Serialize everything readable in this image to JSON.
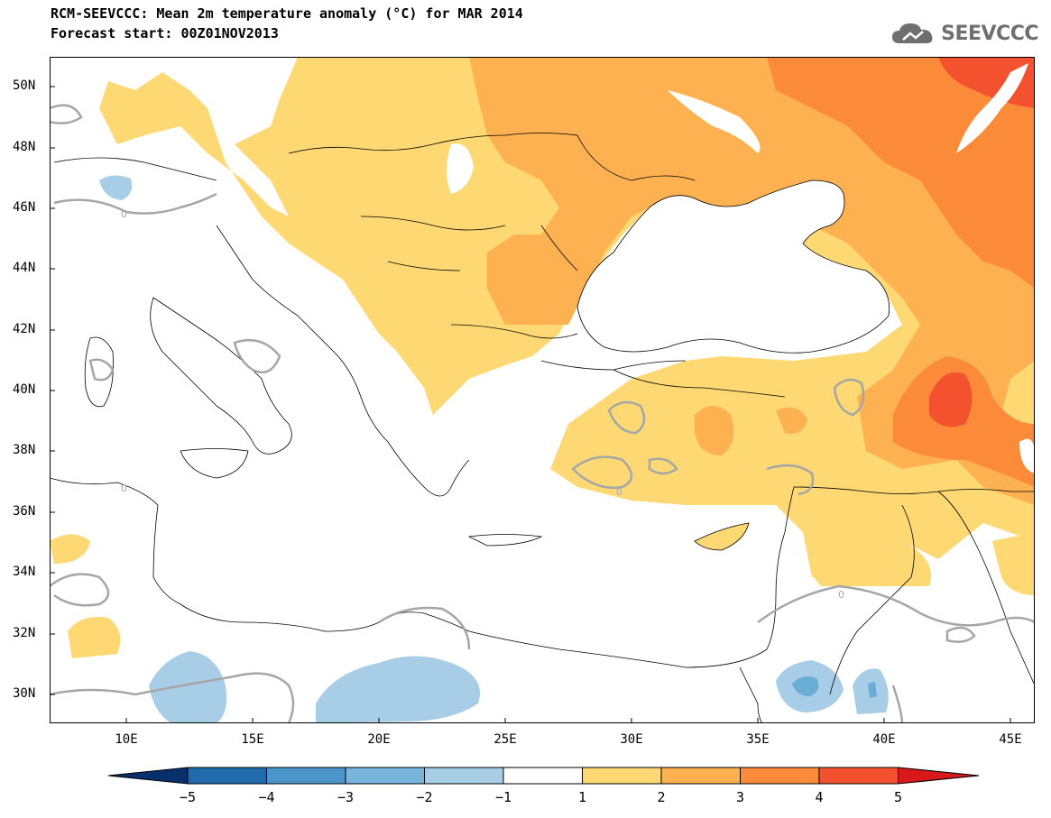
{
  "title": {
    "line1": "RCM-SEEVCCC: Mean 2m temperature anomaly (°C) for MAR 2014",
    "line2": "Forecast start: 00Z01NOV2013"
  },
  "logo": {
    "text": "SEEVCCC",
    "icon": "cloud-icon"
  },
  "map": {
    "projection": "lat-lon",
    "lon_range": [
      7,
      46
    ],
    "lat_range": [
      29,
      51
    ],
    "lat_ticks": [
      "50N",
      "48N",
      "46N",
      "44N",
      "42N",
      "40N",
      "38N",
      "36N",
      "34N",
      "32N",
      "30N"
    ],
    "lon_ticks": [
      "10E",
      "15E",
      "20E",
      "25E",
      "30E",
      "35E",
      "40E",
      "45E"
    ],
    "contour_label": "0",
    "colors": {
      "land_line": "#000000",
      "zero_contour": "#a6a6a6",
      "minus2": "#a8cde6",
      "minus3": "#6aaed6",
      "plus1": "#fdd873",
      "plus2": "#fdb151",
      "plus3": "#fb8b39",
      "plus4": "#f4522e"
    }
  },
  "colorbar": {
    "labels": [
      "−5",
      "−4",
      "−3",
      "−2",
      "−1",
      "1",
      "2",
      "3",
      "4",
      "5"
    ],
    "colors": [
      "#08306b",
      "#1f6aad",
      "#4a95c9",
      "#79b4dd",
      "#a8cde6",
      "#ffffff",
      "#fdd873",
      "#fdb151",
      "#fb8b39",
      "#f4522e",
      "#d7191c"
    ]
  }
}
